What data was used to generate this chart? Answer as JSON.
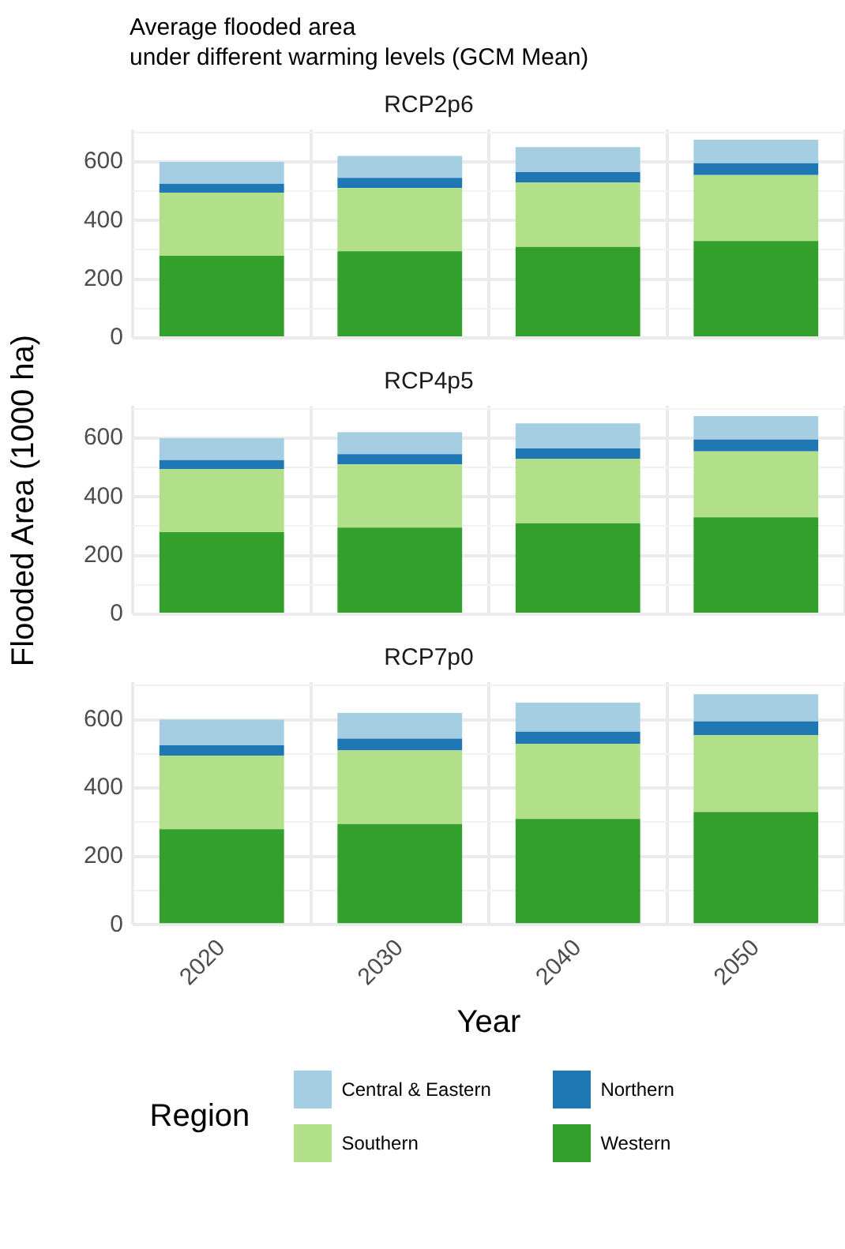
{
  "chart_data": [
    {
      "type": "bar",
      "title": "Average flooded area\nunder different warming levels (GCM Mean)",
      "subtitle": "RCP2p6",
      "categories": [
        "2020",
        "2030",
        "2040",
        "2050"
      ],
      "stacked": true,
      "tick_labels": "y",
      "grid": true,
      "ylim": [
        0,
        710
      ],
      "yticks": [
        0,
        {
          "value": 100,
          "label": null
        },
        200,
        {
          "value": 300,
          "label": null
        },
        400,
        {
          "value": 500,
          "label": null
        },
        600,
        {
          "value": 700,
          "label": null
        }
      ],
      "series": [
        {
          "color": "#33a02c",
          "values": [
            280,
            295,
            310,
            330
          ]
        },
        {
          "color": "#b2df8a",
          "values": [
            215,
            215,
            220,
            225
          ]
        },
        {
          "color": "#1f78b4",
          "values": [
            30,
            35,
            35,
            40
          ]
        },
        {
          "color": "#a6cee3",
          "values": [
            75,
            75,
            85,
            80
          ]
        }
      ]
    },
    {
      "type": "bar",
      "subtitle": "RCP4p5",
      "ylabel": "Flooded Area (1000 ha)",
      "categories": [
        "2020",
        "2030",
        "2040",
        "2050"
      ],
      "stacked": true,
      "tick_labels": "y",
      "grid": true,
      "ylim": [
        0,
        710
      ],
      "yticks": [
        0,
        {
          "value": 100,
          "label": null
        },
        200,
        {
          "value": 300,
          "label": null
        },
        400,
        {
          "value": 500,
          "label": null
        },
        600,
        {
          "value": 700,
          "label": null
        }
      ],
      "series": [
        {
          "color": "#33a02c",
          "values": [
            280,
            295,
            310,
            330
          ]
        },
        {
          "color": "#b2df8a",
          "values": [
            215,
            215,
            220,
            225
          ]
        },
        {
          "color": "#1f78b4",
          "values": [
            30,
            35,
            35,
            40
          ]
        },
        {
          "color": "#a6cee3",
          "values": [
            75,
            75,
            85,
            80
          ]
        }
      ]
    },
    {
      "type": "bar",
      "subtitle": "RCP7p0",
      "xlabel": "Year",
      "legend": "bottom",
      "legend_title": "Region",
      "categories": [
        "2020",
        "2030",
        "2040",
        "2050"
      ],
      "stacked": true,
      "grid": true,
      "ylim": [
        0,
        710
      ],
      "yticks": [
        0,
        {
          "value": 100,
          "label": null
        },
        200,
        {
          "value": 300,
          "label": null
        },
        400,
        {
          "value": 500,
          "label": null
        },
        600,
        {
          "value": 700,
          "label": null
        }
      ],
      "series": [
        {
          "name": "Western",
          "color": "#33a02c",
          "values": [
            280,
            295,
            310,
            330
          ]
        },
        {
          "name": "Southern",
          "color": "#b2df8a",
          "values": [
            215,
            215,
            220,
            225
          ]
        },
        {
          "name": "Northern",
          "color": "#1f78b4",
          "values": [
            30,
            35,
            35,
            40
          ]
        },
        {
          "name": "Central & Eastern",
          "color": "#a6cee3",
          "values": [
            75,
            75,
            85,
            80
          ]
        }
      ]
    }
  ]
}
